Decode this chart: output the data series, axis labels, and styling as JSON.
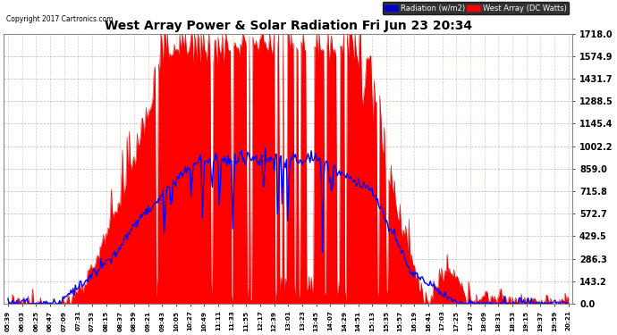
{
  "title": "West Array Power & Solar Radiation Fri Jun 23 20:34",
  "copyright": "Copyright 2017 Cartronics.com",
  "bg_color": "#ffffff",
  "plot_bg_color": "#ffffff",
  "grid_color": "#aaaaaa",
  "title_color": "#000000",
  "ytick_values": [
    0.0,
    143.2,
    286.3,
    429.5,
    572.7,
    715.8,
    859.0,
    1002.2,
    1145.4,
    1288.5,
    1431.7,
    1574.9,
    1718.0
  ],
  "ymax": 1718.0,
  "legend_radiation_label": "Radiation (w/m2)",
  "legend_west_array_label": "West Array (DC Watts)",
  "xtick_labels": [
    "05:39",
    "06:03",
    "06:25",
    "06:47",
    "07:09",
    "07:31",
    "07:53",
    "08:15",
    "08:37",
    "08:59",
    "09:21",
    "09:43",
    "10:05",
    "10:27",
    "10:49",
    "11:11",
    "11:33",
    "11:55",
    "12:17",
    "12:39",
    "13:01",
    "13:23",
    "13:45",
    "14:07",
    "14:29",
    "14:51",
    "15:13",
    "15:35",
    "15:57",
    "16:19",
    "16:41",
    "17:03",
    "17:25",
    "17:47",
    "18:09",
    "18:31",
    "18:53",
    "19:15",
    "19:37",
    "19:59",
    "20:21"
  ],
  "west_color": "#ff0000",
  "radiation_color": "#0000ff",
  "legend_rad_bg": "#0000ff",
  "legend_west_bg": "#ff0000"
}
